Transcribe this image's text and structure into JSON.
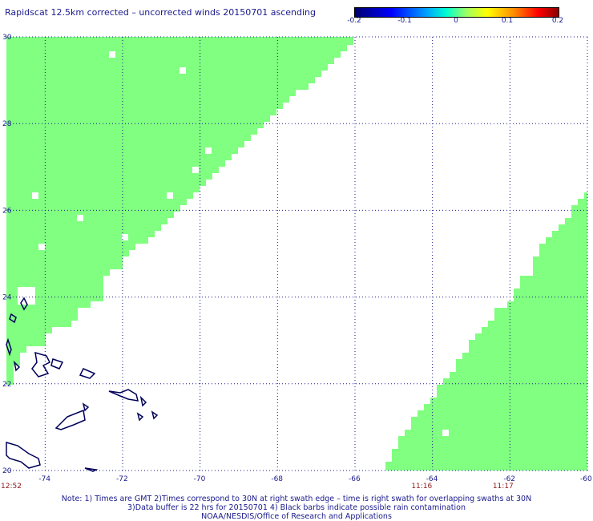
{
  "title": "Rapidscat 12.5km corrected – uncorrected winds 20150701 ascending",
  "colorbar": {
    "ticks": [
      "-0.2",
      "-0.1",
      "0",
      "0.1",
      "0.2"
    ],
    "values": [
      -0.2,
      -0.1,
      0,
      0.1,
      0.2
    ]
  },
  "map": {
    "lon_range": [
      -75,
      -60
    ],
    "lat_range": [
      20,
      30
    ],
    "lon_ticks": [
      {
        "value": -74,
        "label": "-74"
      },
      {
        "value": -72,
        "label": "-72"
      },
      {
        "value": -70,
        "label": "-70"
      },
      {
        "value": -68,
        "label": "-68"
      },
      {
        "value": -66,
        "label": "-66"
      },
      {
        "value": -64,
        "label": "-64"
      },
      {
        "value": -62,
        "label": "-62"
      },
      {
        "value": -60,
        "label": "-60"
      }
    ],
    "lat_ticks": [
      {
        "value": 30,
        "label": "30"
      },
      {
        "value": 28,
        "label": "28"
      },
      {
        "value": 26,
        "label": "26"
      },
      {
        "value": 24,
        "label": "24"
      },
      {
        "value": 22,
        "label": "22"
      },
      {
        "value": 20,
        "label": "20"
      }
    ],
    "swath_color": "#80ff80",
    "land_color": "#00005a",
    "swath_time_labels": [
      {
        "lon": -75,
        "label": "12:52"
      },
      {
        "lon": -64.4,
        "label": "11:16"
      },
      {
        "lon": -62.3,
        "label": "11:17"
      }
    ]
  },
  "notes": [
    "Note: 1) Times are GMT 2)Times correspond to 30N at right swath edge – time is right swath for overlapping swaths at 30N",
    "3)Data buffer is 22 hrs for 20150701 4) Black barbs indicate possible rain contamination",
    "NOAA/NESDIS/Office of Research and Applications"
  ]
}
